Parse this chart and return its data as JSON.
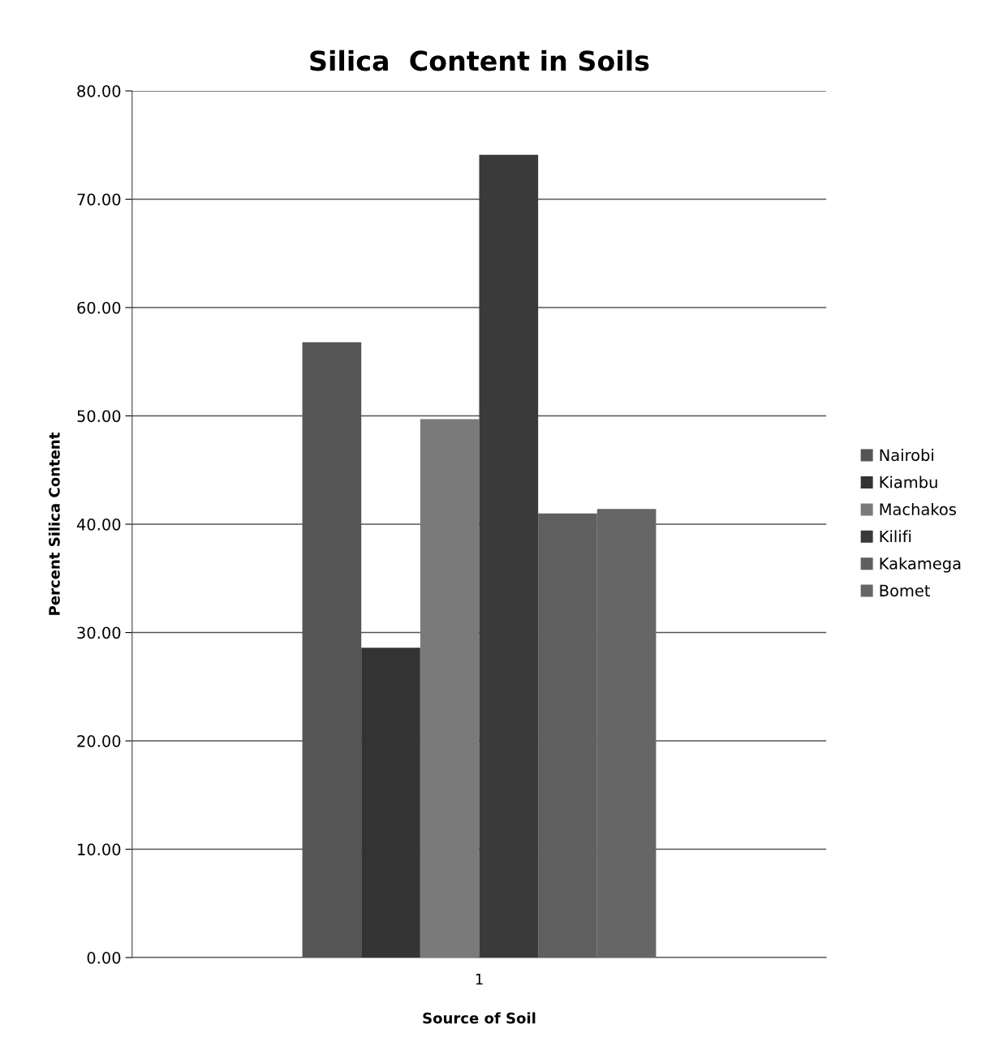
{
  "chart_data": {
    "type": "bar",
    "title": "Silica  Content in Soils",
    "xlabel": "Source of Soil",
    "ylabel": "Percent Silica Content",
    "categories": [
      "1"
    ],
    "series": [
      {
        "name": "Nairobi",
        "color": "#555555",
        "values": [
          56.8
        ]
      },
      {
        "name": "Kiambu",
        "color": "#333333",
        "values": [
          28.6
        ]
      },
      {
        "name": "Machakos",
        "color": "#7a7a7a",
        "values": [
          49.7
        ]
      },
      {
        "name": "Kilifi",
        "color": "#3a3a3a",
        "values": [
          74.1
        ]
      },
      {
        "name": "Kakamega",
        "color": "#5f5f5f",
        "values": [
          41.0
        ]
      },
      {
        "name": "Bomet",
        "color": "#666666",
        "values": [
          41.4
        ]
      }
    ],
    "ylim": [
      0,
      80
    ],
    "yticks": [
      {
        "value": 0,
        "label": "0.00"
      },
      {
        "value": 10,
        "label": "10.00"
      },
      {
        "value": 20,
        "label": "20.00"
      },
      {
        "value": 30,
        "label": "30.00"
      },
      {
        "value": 40,
        "label": "40.00"
      },
      {
        "value": 50,
        "label": "50.00"
      },
      {
        "value": 60,
        "label": "60.00"
      },
      {
        "value": 70,
        "label": "70.00"
      },
      {
        "value": 80,
        "label": "80.00"
      }
    ],
    "grid": "y",
    "legend": "right"
  }
}
